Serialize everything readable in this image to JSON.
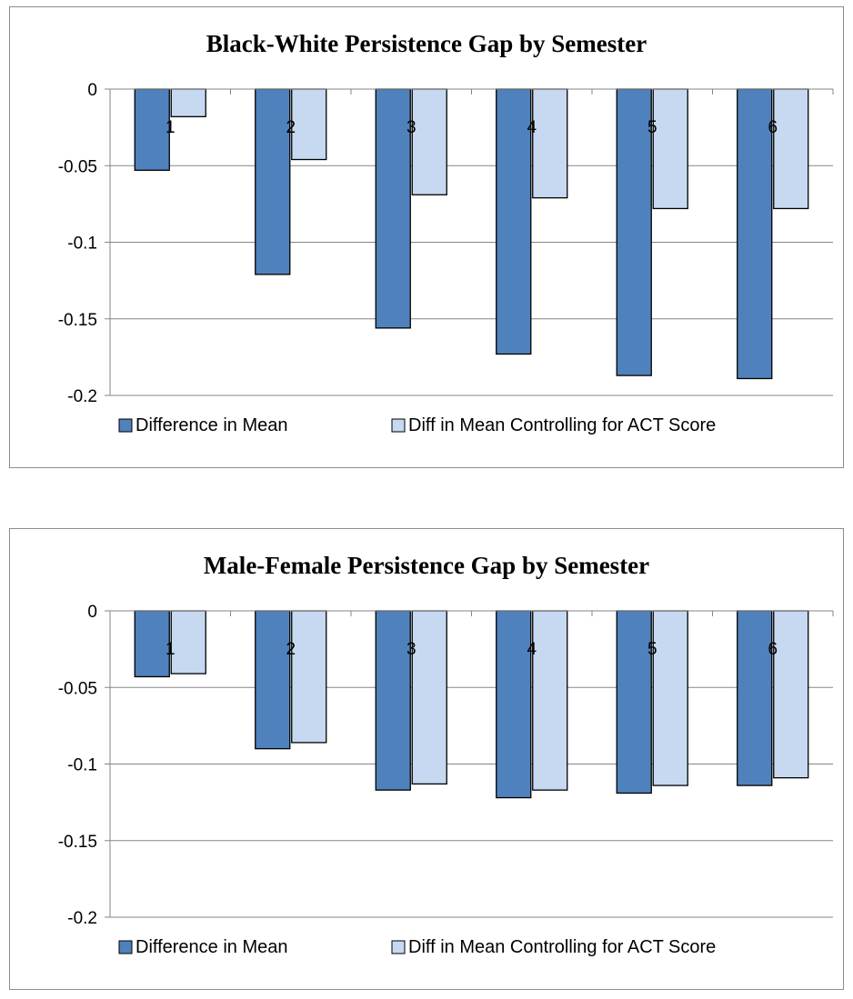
{
  "chart_data": [
    {
      "type": "bar",
      "title": "Black-White Persistence Gap by Semester",
      "categories": [
        "1",
        "2",
        "3",
        "4",
        "5",
        "6"
      ],
      "series": [
        {
          "name": "Difference in Mean",
          "values": [
            -0.053,
            -0.121,
            -0.156,
            -0.173,
            -0.187,
            -0.189
          ]
        },
        {
          "name": "Diff in Mean Controlling for  ACT Score",
          "values": [
            -0.018,
            -0.046,
            -0.069,
            -0.071,
            -0.078,
            -0.078
          ]
        }
      ],
      "yticks": [
        "0",
        "-0.05",
        "-0.1",
        "-0.15",
        "-0.2"
      ],
      "ylim": [
        -0.2,
        0
      ],
      "grid": true,
      "legend": "bottom",
      "colors": {
        "series0": "#4f81bd",
        "series1": "#c6d9f1",
        "outline": "#000000",
        "grid": "#868686"
      }
    },
    {
      "type": "bar",
      "title": "Male-Female Persistence Gap by Semester",
      "categories": [
        "1",
        "2",
        "3",
        "4",
        "5",
        "6"
      ],
      "series": [
        {
          "name": "Difference in Mean",
          "values": [
            -0.043,
            -0.09,
            -0.117,
            -0.122,
            -0.119,
            -0.114
          ]
        },
        {
          "name": "Diff in Mean Controlling for  ACT Score",
          "values": [
            -0.041,
            -0.086,
            -0.113,
            -0.117,
            -0.114,
            -0.109
          ]
        }
      ],
      "yticks": [
        "0",
        "-0.05",
        "-0.1",
        "-0.15",
        "-0.2"
      ],
      "ylim": [
        -0.2,
        0
      ],
      "grid": true,
      "legend": "bottom",
      "colors": {
        "series0": "#4f81bd",
        "series1": "#c6d9f1",
        "outline": "#000000",
        "grid": "#868686"
      }
    }
  ]
}
